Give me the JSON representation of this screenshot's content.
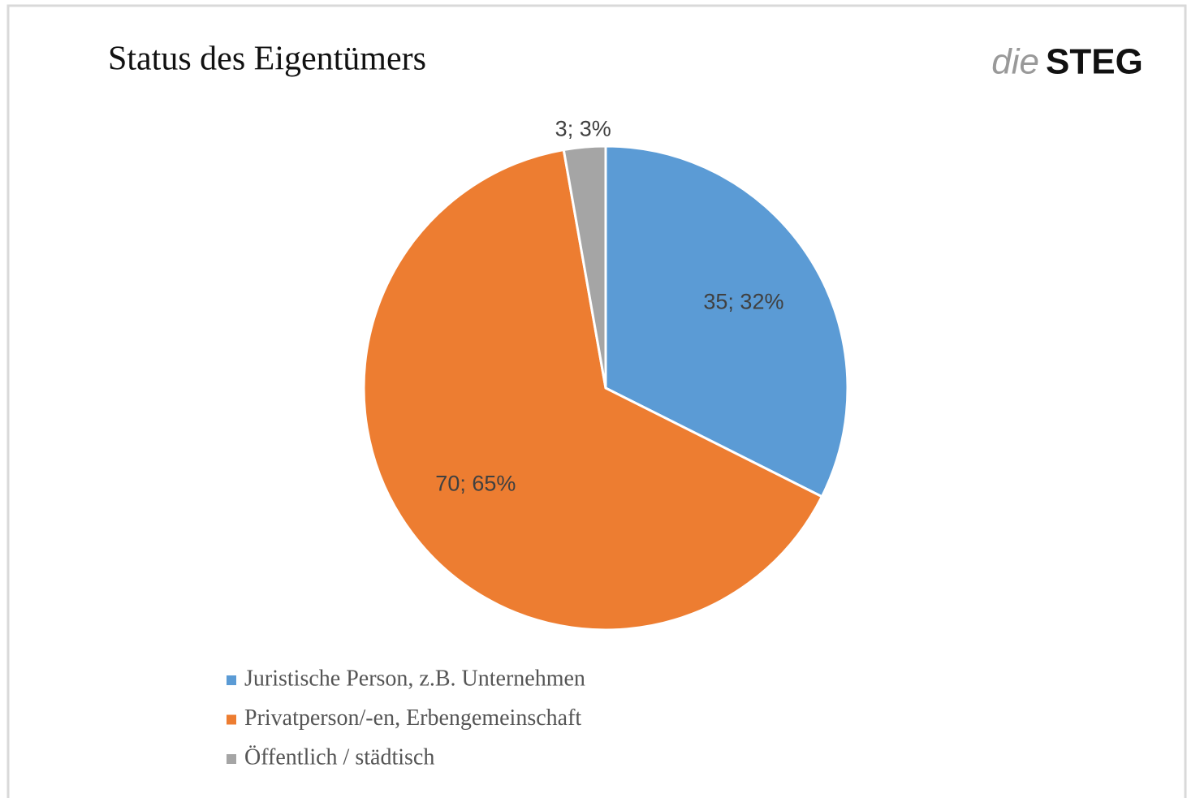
{
  "chart_data": {
    "type": "pie",
    "title": "Status des Eigentümers",
    "logo": {
      "prefix": "die",
      "name": "STEG"
    },
    "categories": [
      "Juristische Person, z.B. Unternehmen",
      "Privatperson/-en, Erbengemeinschaft",
      "Öffentlich / städtisch"
    ],
    "values": [
      35,
      70,
      3
    ],
    "value_labels": [
      "35; 32%",
      "70; 65%",
      "3; 3%"
    ],
    "colors": [
      "#5b9bd5",
      "#ed7d31",
      "#a5a5a5"
    ],
    "legend": "bottom-left"
  }
}
